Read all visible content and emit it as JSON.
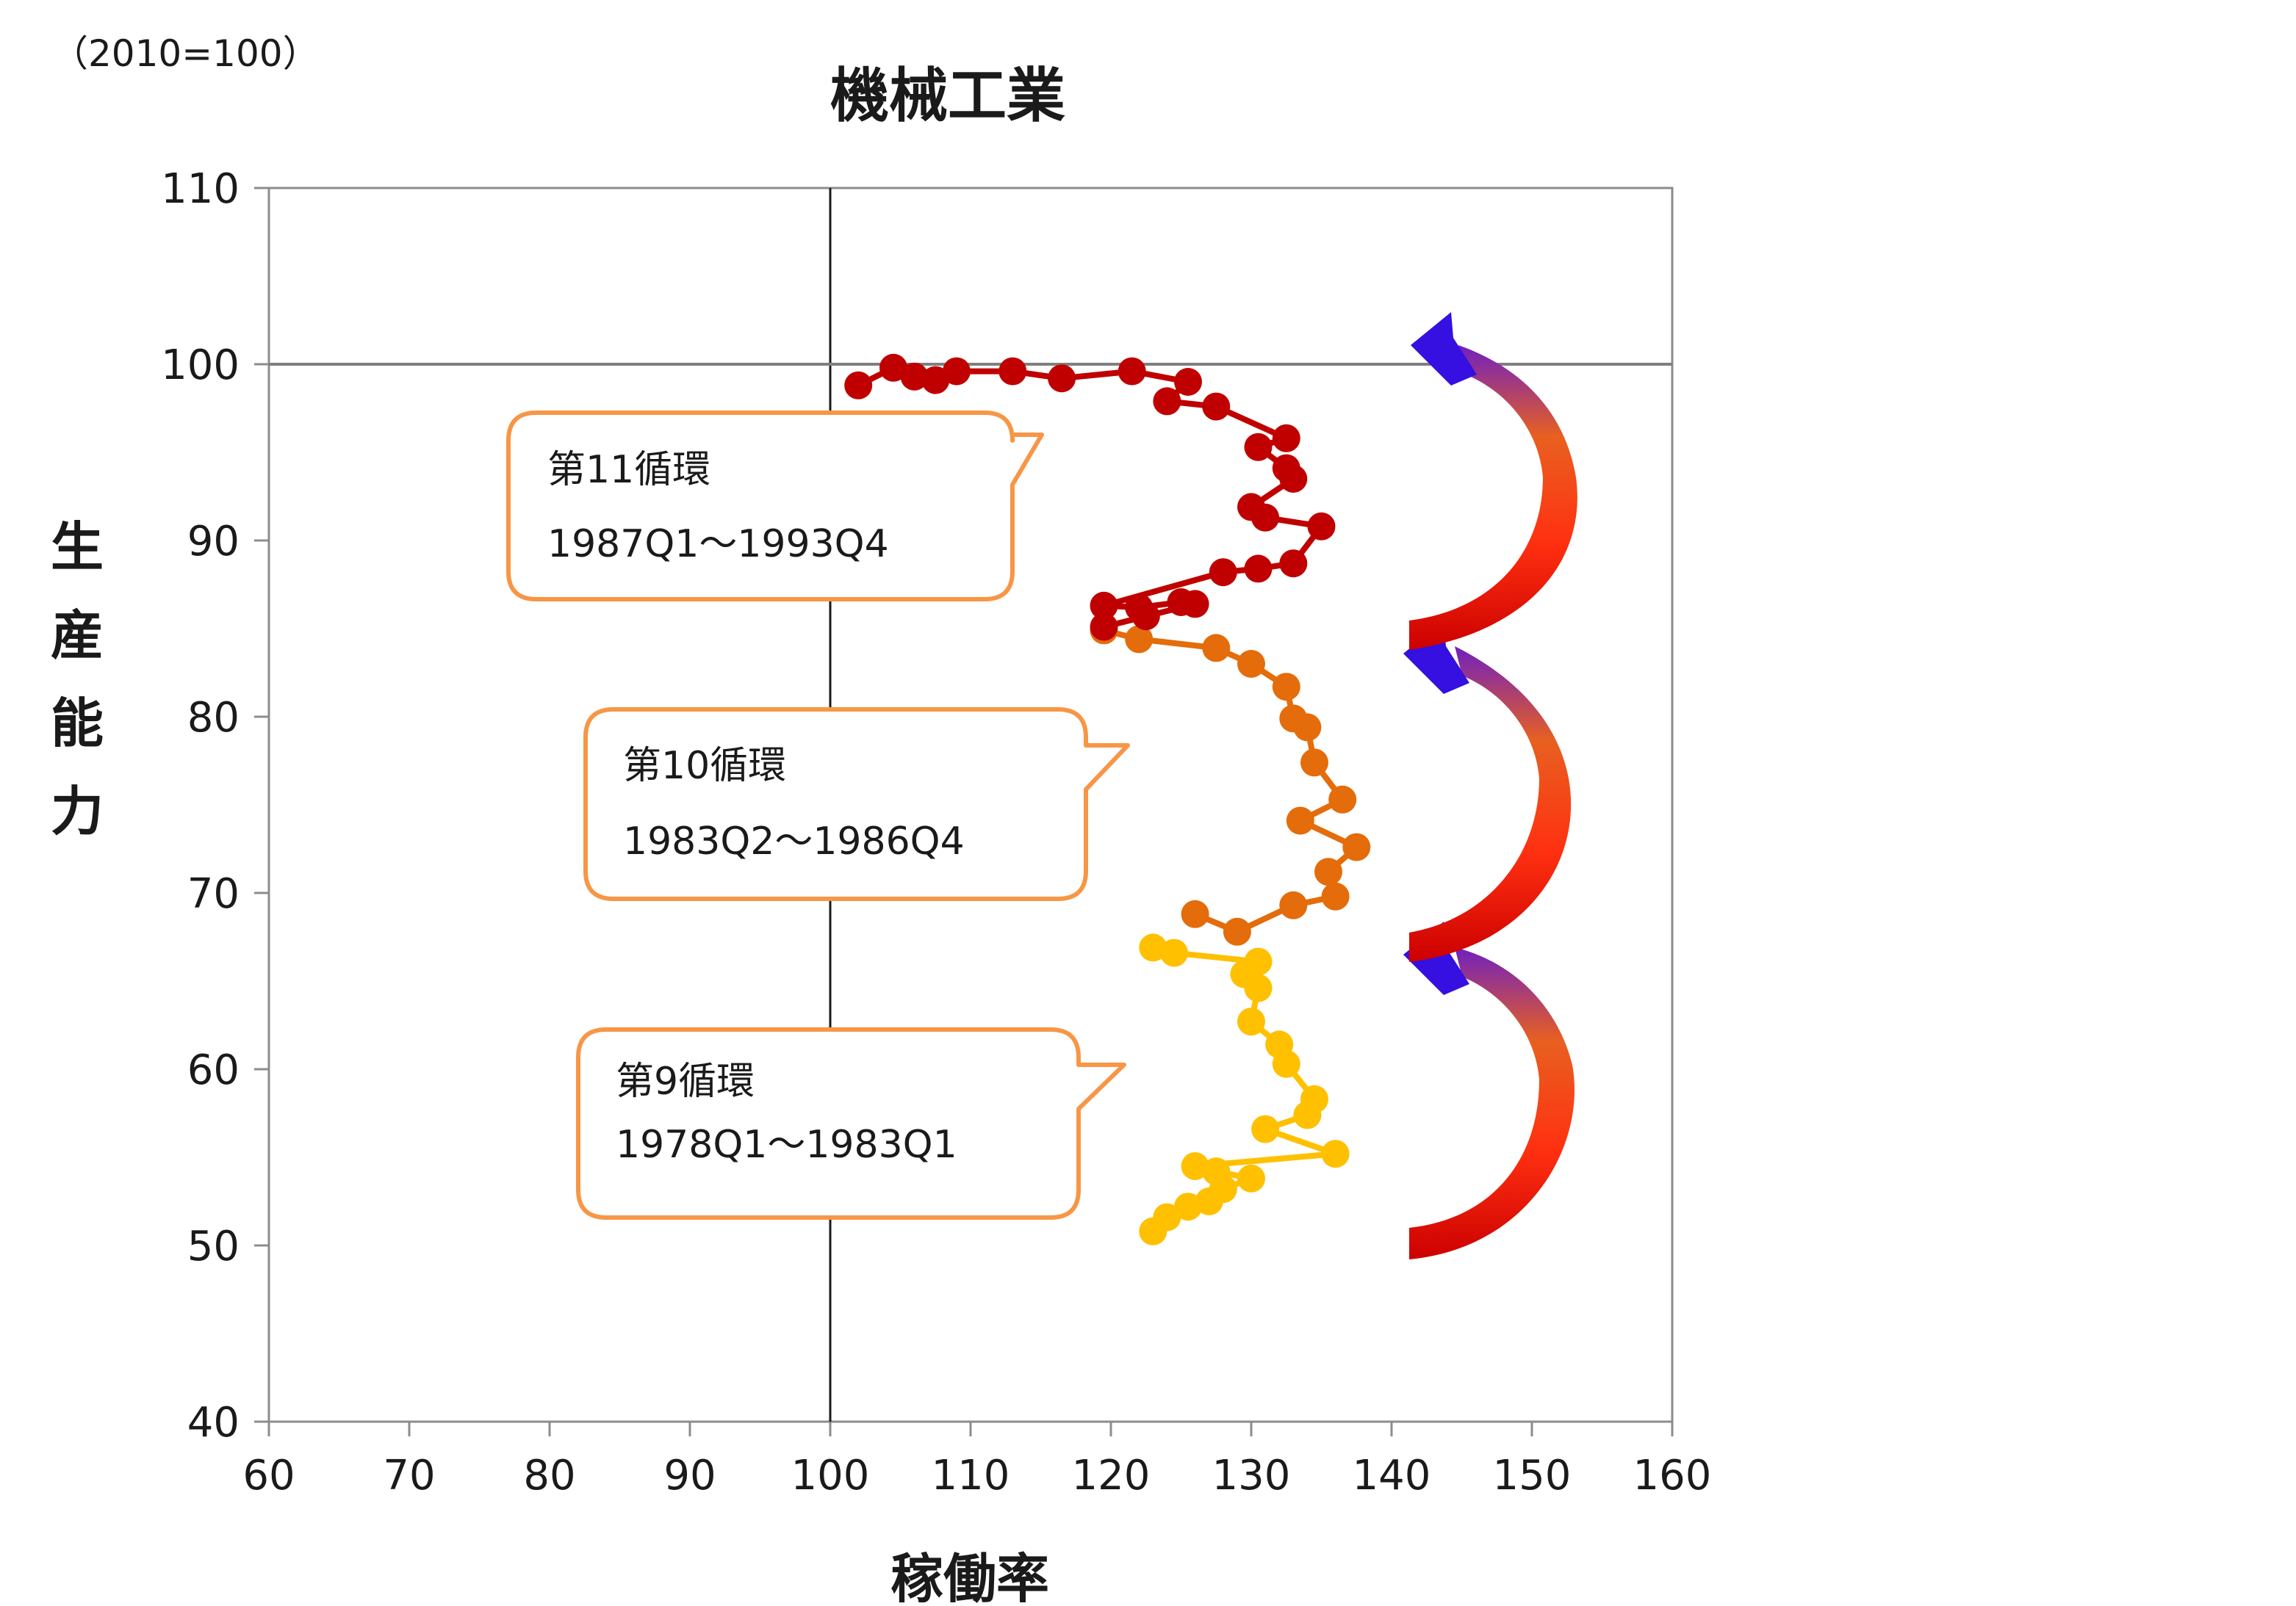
{
  "chart_data": {
    "type": "line",
    "title": "機械工業",
    "unit_note": "（2010=100）",
    "xlabel": "稼働率",
    "ylabel": "生産能力",
    "xlim": [
      60,
      160
    ],
    "ylim": [
      40,
      110
    ],
    "xticks": [
      60,
      70,
      80,
      90,
      100,
      110,
      120,
      130,
      140,
      150,
      160
    ],
    "yticks": [
      40,
      50,
      60,
      70,
      80,
      90,
      100,
      110
    ],
    "grid": false,
    "reference_lines": {
      "x": 100,
      "y": 100
    },
    "series": [
      {
        "color": "#FFC000",
        "points": [
          [
            123,
            50.8
          ],
          [
            124,
            51.6
          ],
          [
            125.5,
            52.2
          ],
          [
            127,
            52.5
          ],
          [
            128,
            53.2
          ],
          [
            130,
            53.8
          ],
          [
            127.5,
            54.2
          ],
          [
            126,
            54.5
          ],
          [
            136,
            55.2
          ],
          [
            131,
            56.6
          ],
          [
            134,
            57.4
          ],
          [
            134.5,
            58.3
          ],
          [
            132.5,
            60.3
          ],
          [
            132,
            61.4
          ],
          [
            130,
            62.7
          ],
          [
            130.5,
            64.6
          ],
          [
            129.5,
            65.4
          ],
          [
            130.5,
            66.1
          ],
          [
            124.5,
            66.6
          ],
          [
            123,
            66.9
          ]
        ]
      },
      {
        "color": "#E46C0A",
        "points": [
          [
            126,
            68.8
          ],
          [
            129,
            67.8
          ],
          [
            133,
            69.3
          ],
          [
            136,
            69.8
          ],
          [
            135.5,
            71.2
          ],
          [
            137.5,
            72.6
          ],
          [
            133.5,
            74.1
          ],
          [
            136.5,
            75.3
          ],
          [
            134.5,
            77.4
          ],
          [
            134,
            79.4
          ],
          [
            133,
            79.9
          ],
          [
            132.5,
            81.7
          ],
          [
            130,
            83.0
          ],
          [
            127.5,
            83.9
          ],
          [
            122,
            84.4
          ],
          [
            119.5,
            84.9
          ]
        ]
      },
      {
        "color": "#C00000",
        "points": [
          [
            119.5,
            85.1
          ],
          [
            122.5,
            85.7
          ],
          [
            126,
            86.4
          ],
          [
            125,
            86.5
          ],
          [
            122,
            86.2
          ],
          [
            119.5,
            86.3
          ],
          [
            128,
            88.2
          ],
          [
            130.5,
            88.4
          ],
          [
            133,
            88.7
          ],
          [
            135,
            90.8
          ],
          [
            131,
            91.3
          ],
          [
            130,
            91.9
          ],
          [
            133,
            93.5
          ],
          [
            132.5,
            94.1
          ],
          [
            130.5,
            95.3
          ],
          [
            132.5,
            95.8
          ],
          [
            127.5,
            97.6
          ],
          [
            124,
            97.9
          ],
          [
            125.5,
            99.0
          ],
          [
            121.5,
            99.6
          ],
          [
            116.5,
            99.2
          ],
          [
            113,
            99.6
          ],
          [
            109,
            99.6
          ],
          [
            107.5,
            99.1
          ],
          [
            106,
            99.3
          ],
          [
            104.5,
            99.8
          ],
          [
            102,
            98.8
          ]
        ]
      }
    ],
    "annotations": [
      {
        "line1": "第11循環",
        "line2": "1987Q1～1993Q4"
      },
      {
        "line1": "第10循環",
        "line2": "1983Q2～1986Q4"
      },
      {
        "line1": "第9循環",
        "line2": "1978Q1～1983Q1"
      }
    ]
  }
}
